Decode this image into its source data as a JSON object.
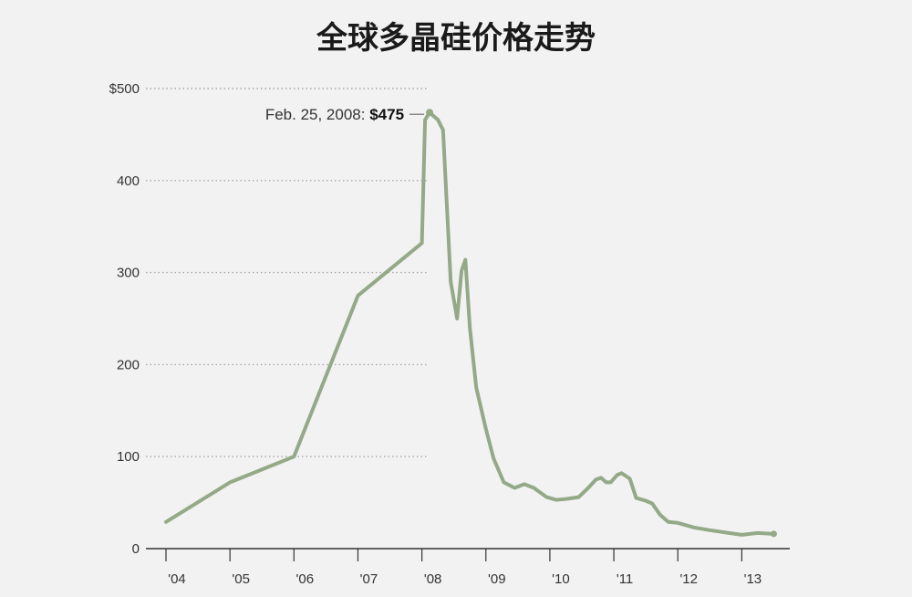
{
  "chart_data": {
    "type": "line",
    "title": "全球多晶硅价格走势",
    "xlabel": "",
    "ylabel": "",
    "x_tick_labels": [
      "'04",
      "'05",
      "'06",
      "'07",
      "'08",
      "'09",
      "'10",
      "'11",
      "'12",
      "'13"
    ],
    "y_tick_labels": [
      "$500",
      "400",
      "300",
      "200",
      "100",
      "0"
    ],
    "y_ticks": [
      500,
      400,
      300,
      200,
      100,
      0
    ],
    "ylim": [
      0,
      500
    ],
    "xlim": [
      2004,
      2013.75
    ],
    "grid": true,
    "line_color": "#93a987",
    "series": [
      {
        "name": "",
        "x": [
          2004.0,
          2005.0,
          2006.0,
          2007.0,
          2008.0,
          2008.05,
          2008.12,
          2008.25,
          2008.33,
          2008.45,
          2008.55,
          2008.62,
          2008.68,
          2008.75,
          2008.85,
          2009.0,
          2009.12,
          2009.28,
          2009.45,
          2009.6,
          2009.75,
          2009.95,
          2010.1,
          2010.25,
          2010.45,
          2010.6,
          2010.72,
          2010.8,
          2010.88,
          2010.95,
          2011.05,
          2011.12,
          2011.25,
          2011.35,
          2011.5,
          2011.6,
          2011.72,
          2011.85,
          2012.0,
          2012.25,
          2012.5,
          2012.8,
          2013.0,
          2013.25,
          2013.5
        ],
        "y": [
          29,
          72,
          100,
          275,
          332,
          466,
          474,
          466,
          455,
          290,
          250,
          302,
          314,
          240,
          175,
          130,
          98,
          72,
          66,
          70,
          66,
          56,
          53,
          54,
          56,
          66,
          75,
          77,
          72,
          72,
          80,
          82,
          76,
          55,
          52,
          49,
          37,
          29,
          28,
          23,
          20,
          17,
          15,
          17,
          16
        ]
      }
    ],
    "annotations": [
      {
        "label": "Feb. 25, 2008: ",
        "value": "$475",
        "x": 2008.12,
        "y": 474
      }
    ]
  }
}
